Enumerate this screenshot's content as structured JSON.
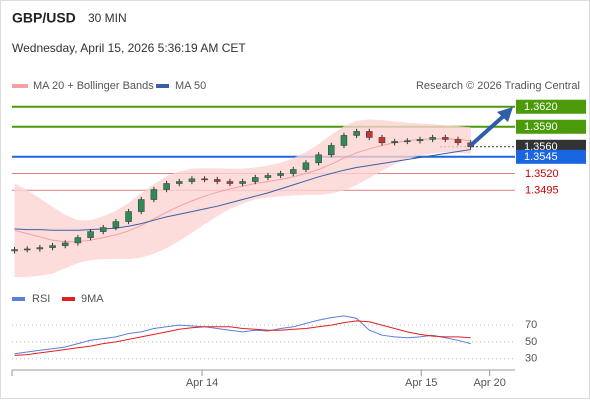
{
  "header": {
    "symbol": "GBP/USD",
    "interval": "30 MIN",
    "timestamp": "Wednesday, April 15, 2026 5:36:19 AM CET"
  },
  "chart_data": [
    {
      "type": "candlestick",
      "credit": "Research © 2026 Trading Central",
      "up_color": "#2e8b57",
      "down_color": "#c0392b",
      "wick_color": "#333333",
      "open": [
        1.3404,
        1.3406,
        1.3407,
        1.3409,
        1.3412,
        1.3416,
        1.3424,
        1.3433,
        1.3439,
        1.3448,
        1.3463,
        1.3481,
        1.3496,
        1.3505,
        1.3508,
        1.3512,
        1.3511,
        1.3508,
        1.3505,
        1.3508,
        1.3514,
        1.3517,
        1.352,
        1.3526,
        1.3536,
        1.3548,
        1.3562,
        1.3577,
        1.3583,
        1.3574,
        1.3566,
        1.3568,
        1.3569,
        1.3571,
        1.3574,
        1.3571,
        1.3566
      ],
      "high": [
        1.341,
        1.3411,
        1.3413,
        1.3416,
        1.342,
        1.3428,
        1.3437,
        1.3443,
        1.3452,
        1.3467,
        1.3485,
        1.35,
        1.3509,
        1.3512,
        1.3516,
        1.3516,
        1.3515,
        1.3512,
        1.3512,
        1.3518,
        1.3521,
        1.3524,
        1.353,
        1.354,
        1.3552,
        1.3566,
        1.3581,
        1.3587,
        1.3587,
        1.3578,
        1.3572,
        1.3573,
        1.3575,
        1.3578,
        1.3578,
        1.3575,
        1.357
      ],
      "low": [
        1.34,
        1.3402,
        1.3403,
        1.3405,
        1.3408,
        1.3412,
        1.342,
        1.3429,
        1.3435,
        1.3444,
        1.3459,
        1.3477,
        1.3492,
        1.3501,
        1.3504,
        1.3507,
        1.3504,
        1.3501,
        1.3501,
        1.3504,
        1.351,
        1.3513,
        1.3516,
        1.3522,
        1.3532,
        1.3544,
        1.3558,
        1.3573,
        1.357,
        1.3562,
        1.3562,
        1.3564,
        1.3565,
        1.3567,
        1.3567,
        1.3562,
        1.3556
      ],
      "close": [
        1.3406,
        1.3407,
        1.3409,
        1.3412,
        1.3416,
        1.3424,
        1.3433,
        1.3439,
        1.3448,
        1.3463,
        1.3481,
        1.3496,
        1.3505,
        1.3508,
        1.3512,
        1.3511,
        1.3508,
        1.3505,
        1.3508,
        1.3514,
        1.3517,
        1.352,
        1.3526,
        1.3536,
        1.3548,
        1.3562,
        1.3577,
        1.3583,
        1.3574,
        1.3566,
        1.3568,
        1.3569,
        1.3571,
        1.3574,
        1.3571,
        1.3566,
        1.356
      ],
      "series": [
        {
          "name": "MA 20 + Bollinger Bands",
          "color": "#f4a0a0",
          "band_color": "#fdd3d3",
          "values": [
            1.3435,
            1.343,
            1.3425,
            1.342,
            1.3418,
            1.3418,
            1.342,
            1.3424,
            1.3428,
            1.3434,
            1.3442,
            1.3452,
            1.3462,
            1.3471,
            1.3479,
            1.3486,
            1.3492,
            1.3497,
            1.3501,
            1.3505,
            1.3508,
            1.3511,
            1.3515,
            1.352,
            1.3526,
            1.3534,
            1.3543,
            1.3551,
            1.3557,
            1.3562,
            1.3566,
            1.3569,
            1.3571,
            1.3572,
            1.3572,
            1.3571,
            1.3569
          ],
          "upper": [
            1.3505,
            1.3495,
            1.3483,
            1.347,
            1.3458,
            1.345,
            1.345,
            1.3456,
            1.3464,
            1.3476,
            1.349,
            1.3504,
            1.3516,
            1.3523,
            1.3527,
            1.3528,
            1.3528,
            1.3527,
            1.3527,
            1.3529,
            1.3532,
            1.3536,
            1.3543,
            1.3552,
            1.3564,
            1.3578,
            1.3591,
            1.3599,
            1.3601,
            1.36,
            1.3598,
            1.3596,
            1.3595,
            1.3594,
            1.3592,
            1.3591,
            1.3589
          ],
          "lower": [
            1.3365,
            1.3365,
            1.3367,
            1.337,
            1.3378,
            1.3386,
            1.339,
            1.3392,
            1.3392,
            1.3392,
            1.3394,
            1.34,
            1.3408,
            1.3419,
            1.3431,
            1.3444,
            1.3456,
            1.3467,
            1.3475,
            1.3481,
            1.3484,
            1.3486,
            1.3487,
            1.3488,
            1.3488,
            1.349,
            1.3495,
            1.3503,
            1.3513,
            1.3524,
            1.3534,
            1.3542,
            1.3547,
            1.355,
            1.3552,
            1.3551,
            1.3549
          ]
        },
        {
          "name": "MA 50",
          "color": "#3a5fa8",
          "values": [
            1.3437,
            1.3436,
            1.3436,
            1.3435,
            1.3435,
            1.3435,
            1.3436,
            1.3437,
            1.3438,
            1.3441,
            1.3445,
            1.345,
            1.3455,
            1.3459,
            1.3463,
            1.3467,
            1.3471,
            1.3476,
            1.3481,
            1.3486,
            1.3491,
            1.3497,
            1.3503,
            1.3509,
            1.3515,
            1.352,
            1.3525,
            1.3529,
            1.3532,
            1.3535,
            1.3538,
            1.3541,
            1.3544,
            1.3547,
            1.355,
            1.3553,
            1.3556
          ]
        }
      ],
      "levels": [
        {
          "value": 1.362,
          "label": "1.3620",
          "color": "#4a9a0a",
          "boxed": true,
          "line": "solid"
        },
        {
          "value": 1.359,
          "label": "1.3590",
          "color": "#4a9a0a",
          "boxed": true,
          "line": "solid"
        },
        {
          "value": 1.356,
          "label": "1.3560",
          "color": "#333333",
          "boxed": true,
          "line": "dotted"
        },
        {
          "value": 1.3545,
          "label": "1.3545",
          "color": "#1a66e0",
          "boxed": true,
          "line": "solid"
        },
        {
          "value": 1.352,
          "label": "1.3520",
          "color": "#e06060",
          "boxed": false,
          "line": "solid"
        },
        {
          "value": 1.3495,
          "label": "1.3495",
          "color": "#e06060",
          "boxed": false,
          "line": "solid"
        }
      ],
      "xlim": [
        -0.2,
        39.5
      ],
      "ylim": [
        1.3353,
        1.369
      ]
    },
    {
      "type": "line",
      "series": [
        {
          "name": "RSI",
          "color": "#5b7fd6",
          "values": [
            36,
            38,
            40,
            42,
            44,
            48,
            52,
            54,
            56,
            60,
            62,
            66,
            68,
            70,
            69,
            68,
            66,
            64,
            62,
            64,
            63,
            66,
            68,
            72,
            76,
            79,
            81,
            78,
            64,
            58,
            56,
            55,
            56,
            58,
            55,
            52,
            48
          ]
        },
        {
          "name": "9MA",
          "color": "#e02020",
          "values": [
            34,
            35,
            37,
            39,
            41,
            43,
            45,
            48,
            50,
            53,
            56,
            59,
            62,
            65,
            67,
            68,
            68,
            68,
            66,
            65,
            64,
            64,
            65,
            66,
            68,
            70,
            73,
            75,
            74,
            70,
            66,
            62,
            59,
            57,
            56,
            56,
            55
          ]
        }
      ],
      "xlim": [
        -0.2,
        39.5
      ],
      "xticks": [
        {
          "value": 14.8,
          "label": "Apr 14"
        },
        {
          "value": 32.1,
          "label": "Apr 15"
        },
        {
          "value": 37.5,
          "label": "Apr 20"
        }
      ],
      "ylim": [
        19,
        88
      ],
      "yticks": [
        70,
        50,
        30
      ],
      "grid": true
    }
  ]
}
